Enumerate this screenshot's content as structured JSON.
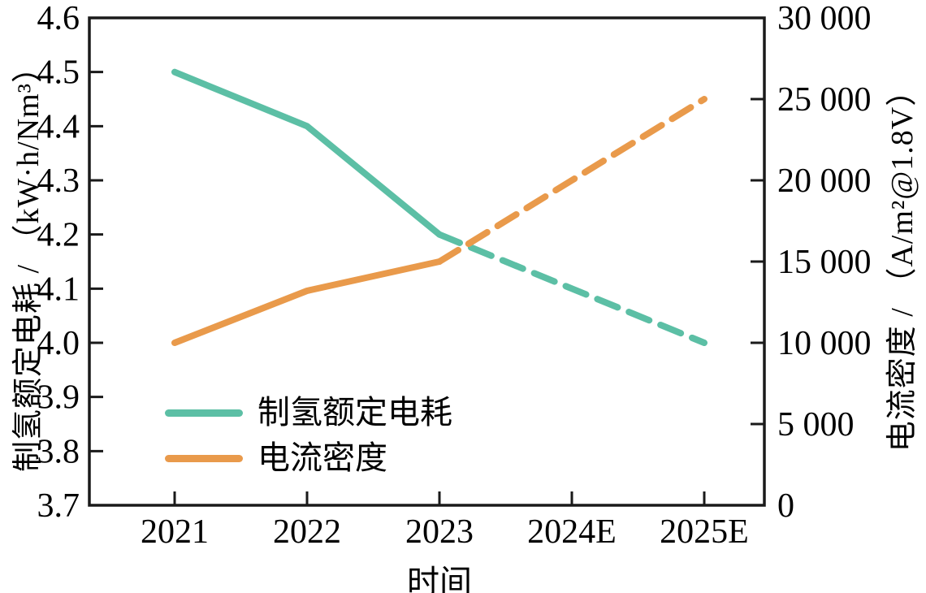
{
  "chart_data": {
    "type": "line",
    "title": "",
    "categories": [
      "2021",
      "2022",
      "2023",
      "2024E",
      "2025E"
    ],
    "x_axis": {
      "label": "时间"
    },
    "left_axis": {
      "label": "制氢额定电耗 / （kW·h/Nm³）",
      "min": 3.7,
      "max": 4.6,
      "step": 0.1,
      "tick_labels": [
        "4.6",
        "4.5",
        "4.4",
        "4.3",
        "4.2",
        "4.1",
        "4.0",
        "3.9",
        "3.8",
        "3.7"
      ]
    },
    "right_axis": {
      "label": "电流密度 / （A/m²@1.8V）",
      "min": 0,
      "max": 30000,
      "step": 5000,
      "tick_labels": [
        "30 000",
        "25 000",
        "20 000",
        "15 000",
        "10 000",
        "5 000",
        "0"
      ]
    },
    "series": [
      {
        "id": "rated-power-consumption",
        "name": "制氢额定电耗",
        "axis": "left",
        "color": "#5CBFA5",
        "values": [
          4.5,
          4.4,
          4.2,
          4.1,
          4.0
        ],
        "solid_until_index": 2,
        "dashed_after": true
      },
      {
        "id": "current-density",
        "name": "电流密度",
        "axis": "right",
        "color": "#E99A4B",
        "values": [
          10000,
          13200,
          15000,
          20000,
          25000
        ],
        "solid_until_index": 2,
        "dashed_after": true
      }
    ],
    "legend": {
      "position": "lower-left"
    },
    "style": {
      "axis_color": "#1A1A1A",
      "background": "#FFFFFF",
      "grid": "off",
      "line_width": 8,
      "dash_pattern": "27 15"
    }
  }
}
